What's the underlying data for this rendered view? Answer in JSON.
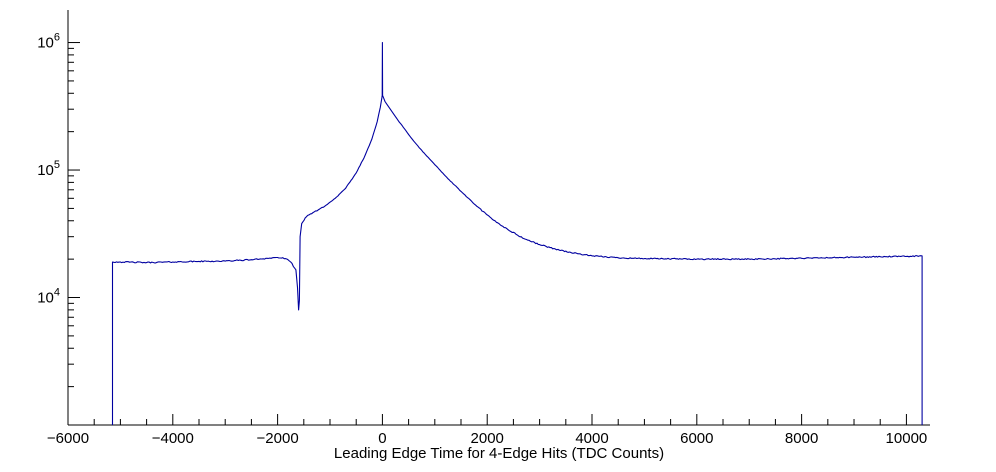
{
  "chart": {
    "background": "#ffffff",
    "axis_color": "#000000",
    "line_color": "#0000a0"
  },
  "chart_data": {
    "type": "line",
    "title": "",
    "xlabel": "Leading Edge Time for 4-Edge Hits (TDC Counts)",
    "ylabel": "",
    "y_scale": "log",
    "x_range": [
      -6000,
      10450
    ],
    "y_range": [
      1000,
      1800000
    ],
    "grid": false,
    "legend": "none",
    "x_ticks_major": [
      -6000,
      -4000,
      -2000,
      0,
      2000,
      4000,
      6000,
      8000,
      10000
    ],
    "x_tick_labels": [
      "−6000",
      "−4000",
      "−2000",
      "0",
      "2000",
      "4000",
      "6000",
      "8000",
      "10000"
    ],
    "x_minor_step": 500,
    "y_ticks_major": [
      {
        "value": 10000,
        "mantissa": "10",
        "exponent": "4"
      },
      {
        "value": 100000,
        "mantissa": "10",
        "exponent": "5"
      },
      {
        "value": 1000000,
        "mantissa": "10",
        "exponent": "6"
      }
    ],
    "series_name": "Leading Edge Time for 4-Edge Hits",
    "anchors": [
      [
        -5150,
        1000
      ],
      [
        -5150,
        19000
      ],
      [
        -5000,
        19000
      ],
      [
        -4500,
        18800
      ],
      [
        -4000,
        19000
      ],
      [
        -3500,
        19200
      ],
      [
        -3000,
        19300
      ],
      [
        -2500,
        19800
      ],
      [
        -2200,
        20300
      ],
      [
        -2000,
        20600
      ],
      [
        -1850,
        20200
      ],
      [
        -1750,
        19000
      ],
      [
        -1650,
        16500
      ],
      [
        -1620,
        12000
      ],
      [
        -1600,
        8000
      ],
      [
        -1585,
        9500
      ],
      [
        -1570,
        30000
      ],
      [
        -1540,
        38000
      ],
      [
        -1450,
        43000
      ],
      [
        -1300,
        47000
      ],
      [
        -1100,
        52000
      ],
      [
        -900,
        60000
      ],
      [
        -700,
        72000
      ],
      [
        -500,
        95000
      ],
      [
        -350,
        125000
      ],
      [
        -200,
        175000
      ],
      [
        -100,
        240000
      ],
      [
        -40,
        310000
      ],
      [
        -10,
        370000
      ],
      [
        -4,
        385000
      ],
      [
        0,
        1000000
      ],
      [
        4,
        385000
      ],
      [
        50,
        345000
      ],
      [
        150,
        300000
      ],
      [
        300,
        245000
      ],
      [
        500,
        190000
      ],
      [
        700,
        150000
      ],
      [
        900,
        122000
      ],
      [
        1200,
        90000
      ],
      [
        1500,
        68000
      ],
      [
        1800,
        52000
      ],
      [
        2100,
        41000
      ],
      [
        2400,
        34000
      ],
      [
        2700,
        29000
      ],
      [
        3000,
        26000
      ],
      [
        3300,
        24000
      ],
      [
        3600,
        22500
      ],
      [
        4000,
        21200
      ],
      [
        4500,
        20500
      ],
      [
        5000,
        20200
      ],
      [
        6000,
        20000
      ],
      [
        7000,
        20000
      ],
      [
        8000,
        20300
      ],
      [
        9000,
        20700
      ],
      [
        9500,
        20900
      ],
      [
        10000,
        21000
      ],
      [
        10250,
        21200
      ],
      [
        10300,
        21200
      ],
      [
        10300,
        1000
      ]
    ]
  }
}
